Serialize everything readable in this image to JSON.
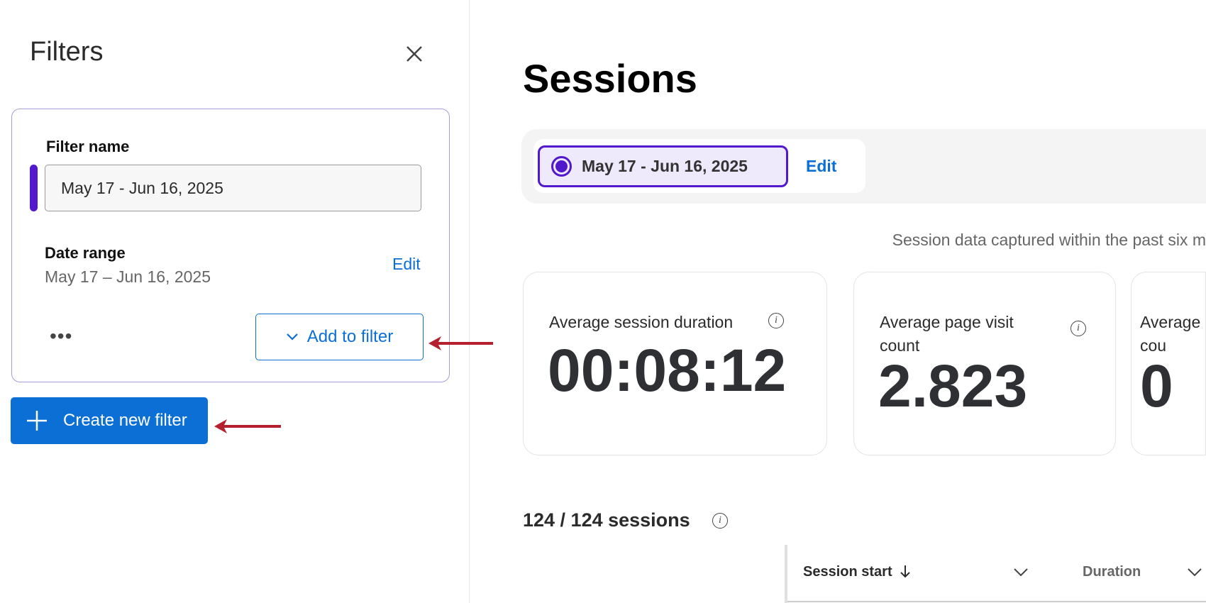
{
  "sidebar": {
    "title": "Filters",
    "filter_name_label": "Filter name",
    "filter_name_value": "May 17 - Jun 16, 2025",
    "date_range_label": "Date range",
    "date_range_value": "May 17 – Jun 16, 2025",
    "edit_label": "Edit",
    "more_label": "•••",
    "add_to_filter_label": "Add to filter",
    "create_new_filter_label": "Create new filter"
  },
  "main": {
    "title": "Sessions",
    "active_filter": "May 17 - Jun 16, 2025",
    "edit_label": "Edit",
    "note": "Session data captured within the past six m",
    "metrics": [
      {
        "label": "Average session duration",
        "value": "00:08:12"
      },
      {
        "label": "Average page visit count",
        "value": "2.823"
      },
      {
        "label": "Average cou",
        "value": "0"
      }
    ],
    "session_count": "124 / 124 sessions",
    "columns": [
      "Session start",
      "Duration"
    ]
  },
  "colors": {
    "accent": "#0b6fd6",
    "purple": "#5118cc",
    "annotation_arrow": "#b5202e"
  }
}
